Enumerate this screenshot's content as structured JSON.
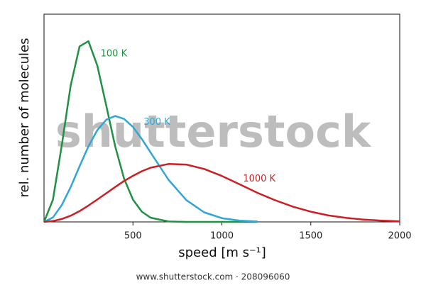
{
  "chart_data": {
    "type": "line",
    "x_label": "speed  [m s⁻¹]",
    "y_label": "rel. number of molecules",
    "x": [
      0,
      50,
      100,
      150,
      200,
      250,
      300,
      350,
      400,
      450,
      500,
      550,
      600,
      700,
      800,
      900,
      1000,
      1100,
      1200,
      1300,
      1400,
      1500,
      1600,
      1700,
      1800,
      1900,
      2000
    ],
    "series": [
      {
        "name": "100 K",
        "color": "#1f9142",
        "values": [
          0,
          10.6,
          36.9,
          65.8,
          84.5,
          87.0,
          75.2,
          55.9,
          36.4,
          20.9,
          10.7,
          4.9,
          2.0,
          0.2,
          0,
          0,
          0,
          0,
          0,
          null,
          null,
          null,
          null,
          null,
          null,
          null,
          null
        ]
      },
      {
        "name": "300 K",
        "color": "#2fa6d6",
        "values": [
          0,
          2.1,
          8.1,
          16.8,
          26.8,
          36.4,
          44.2,
          49.2,
          51.0,
          49.6,
          45.7,
          39.9,
          33.3,
          20.3,
          10.5,
          4.6,
          1.8,
          0.6,
          0.2,
          null,
          null,
          null,
          null,
          null,
          null,
          null,
          null
        ]
      },
      {
        "name": "1000 K",
        "color": "#cc1f24",
        "values": [
          0,
          0.4,
          1.4,
          3.0,
          5.2,
          7.9,
          10.8,
          13.8,
          16.8,
          19.7,
          22.2,
          24.4,
          26.1,
          27.9,
          27.6,
          25.5,
          22.1,
          18.1,
          14.0,
          10.4,
          7.3,
          4.9,
          3.1,
          1.9,
          1.1,
          0.6,
          0.3
        ]
      }
    ],
    "xlim": [
      0,
      2000
    ],
    "xticks": [
      500,
      1000,
      1500,
      2000
    ],
    "ylim": [
      0,
      100
    ],
    "grid": false
  },
  "watermark": "shutterstock",
  "footer": "www.shutterstock.com · 208096060"
}
